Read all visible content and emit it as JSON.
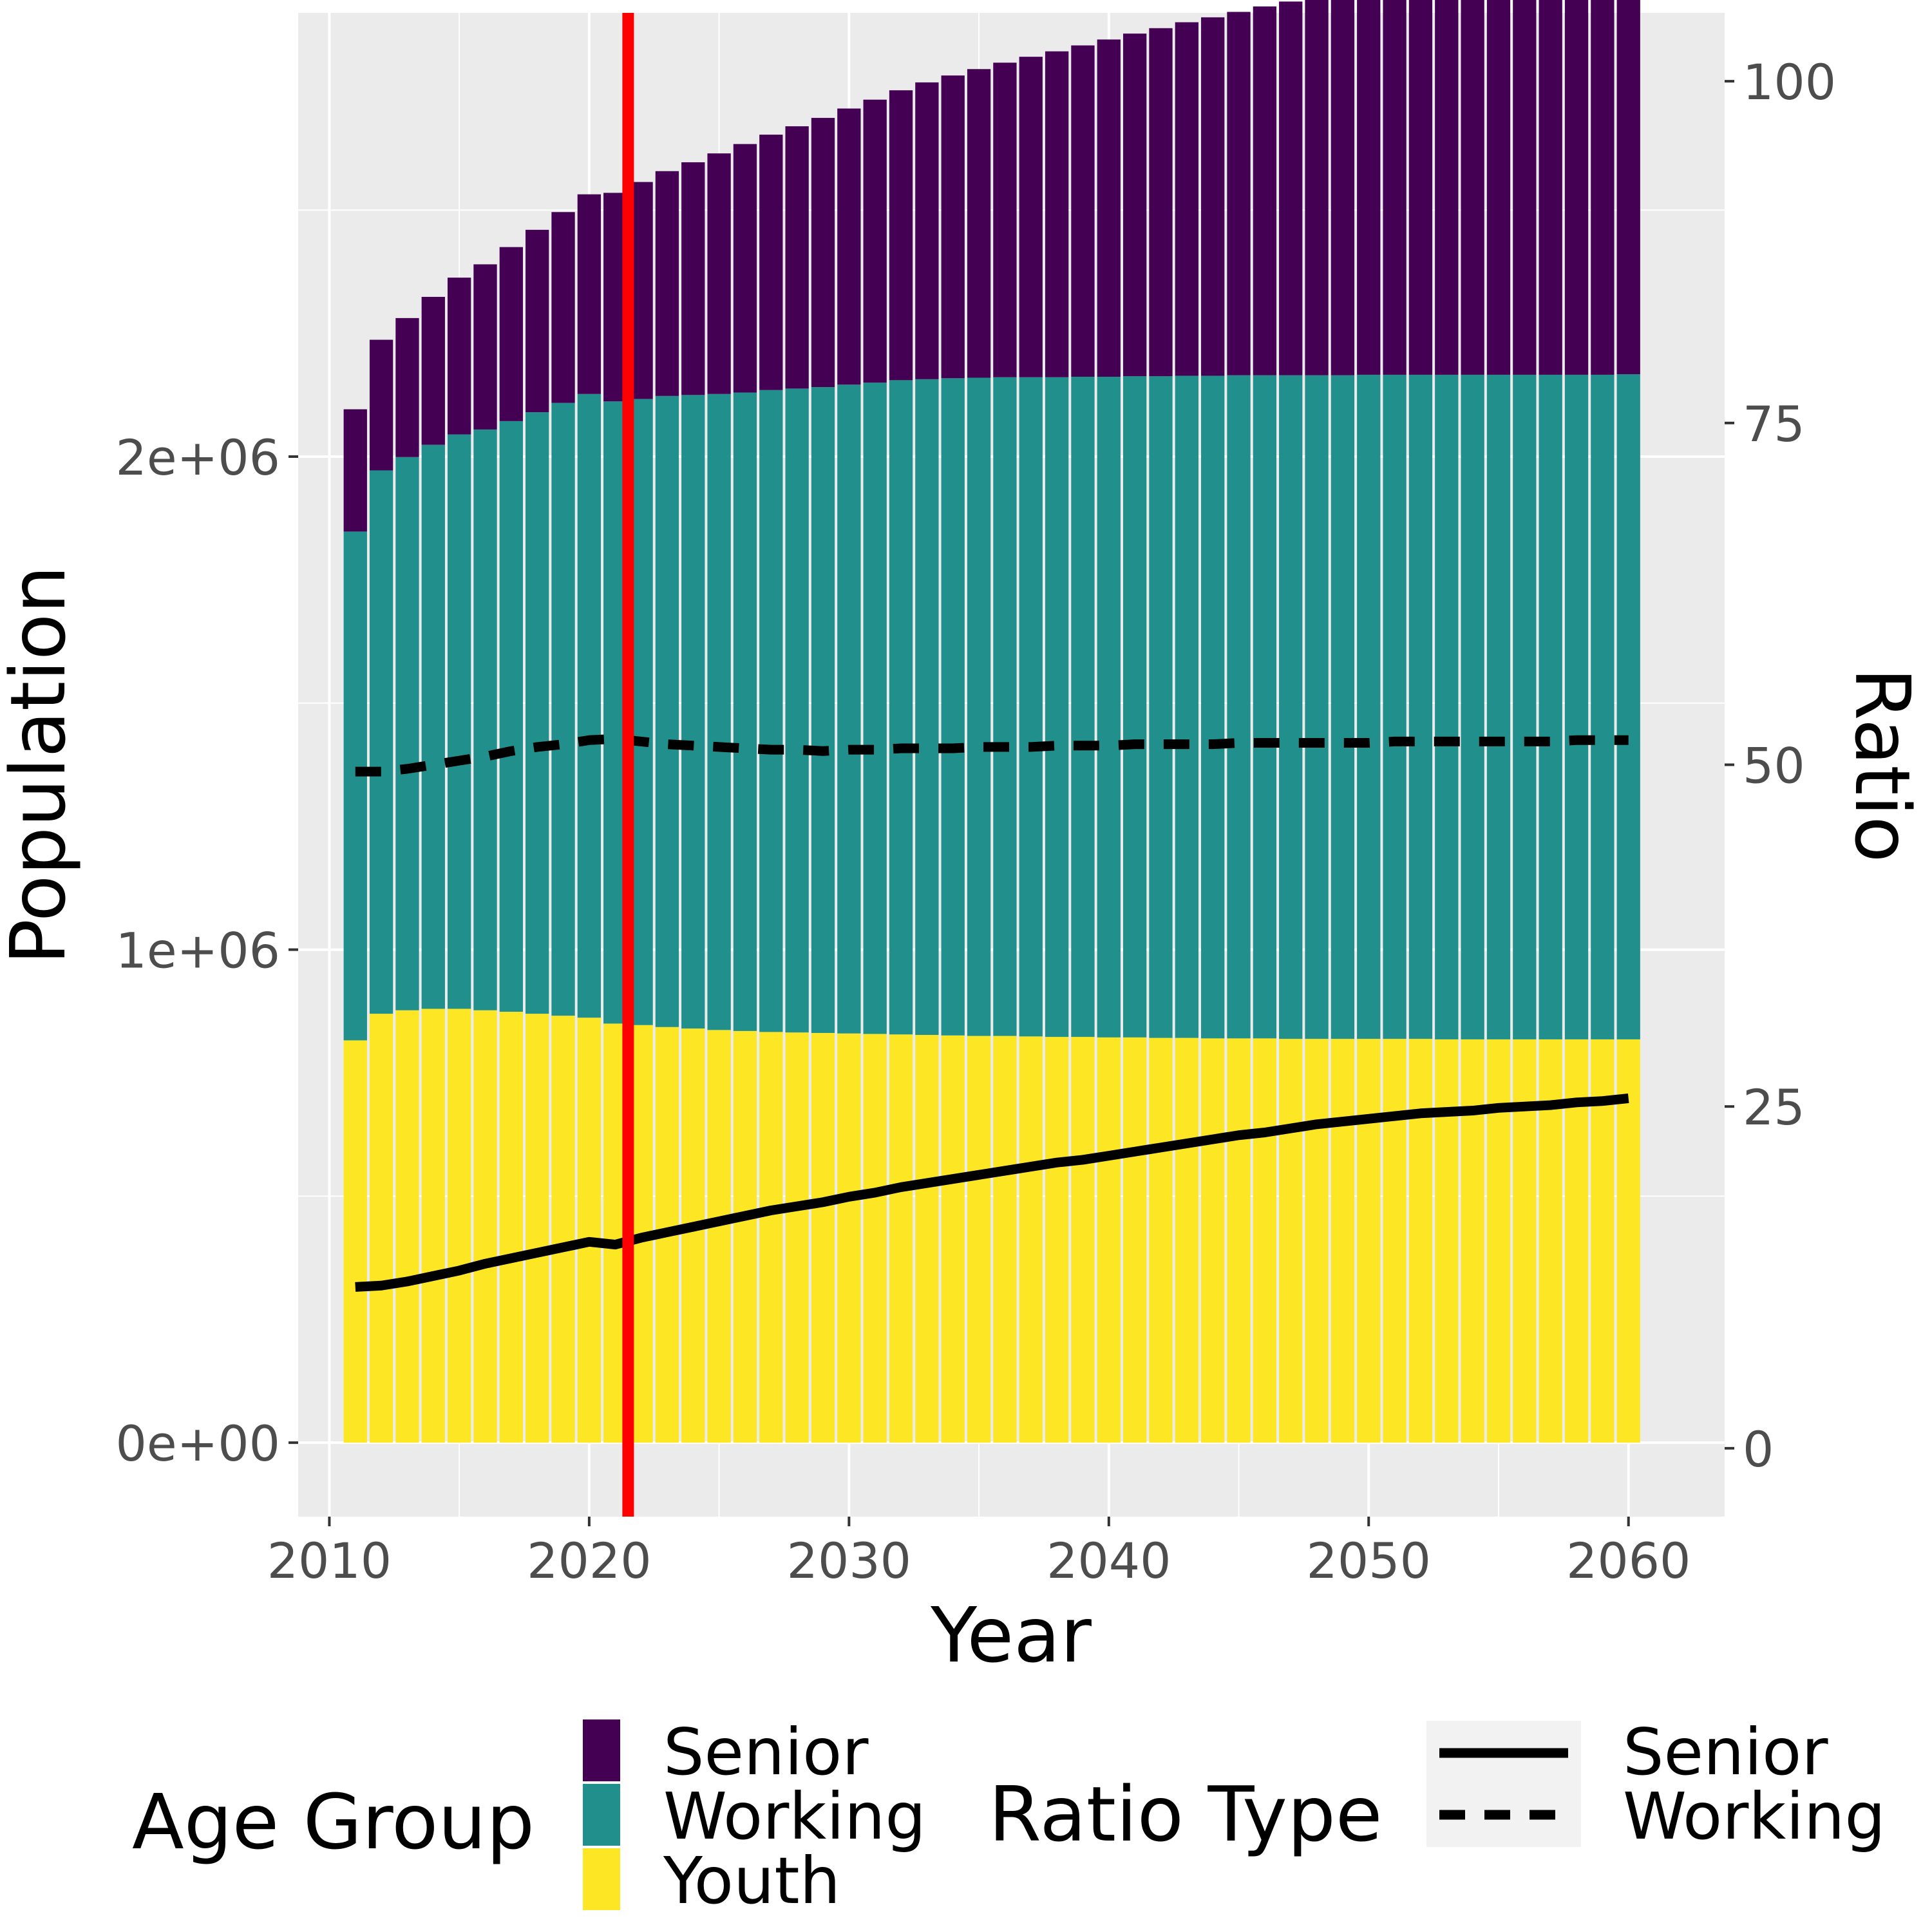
{
  "chart_data": {
    "type": "bar",
    "stacked": true,
    "x": [
      2011,
      2012,
      2013,
      2014,
      2015,
      2016,
      2017,
      2018,
      2019,
      2020,
      2021,
      2022,
      2023,
      2024,
      2025,
      2026,
      2027,
      2028,
      2029,
      2030,
      2031,
      2032,
      2033,
      2034,
      2035,
      2036,
      2037,
      2038,
      2039,
      2040,
      2041,
      2042,
      2043,
      2044,
      2045,
      2046,
      2047,
      2048,
      2049,
      2050,
      2051,
      2052,
      2053,
      2054,
      2055,
      2056,
      2057,
      2058,
      2059,
      2060
    ],
    "series": [
      {
        "name": "Youth",
        "color": "#FDE725",
        "values": [
          816000,
          870000,
          877000,
          880000,
          880000,
          877000,
          874000,
          870000,
          866000,
          862000,
          850000,
          847000,
          843000,
          840000,
          837000,
          835000,
          833000,
          832000,
          831000,
          830000,
          829000,
          828000,
          827000,
          826000,
          825000,
          825000,
          824000,
          823000,
          823000,
          822000,
          822000,
          821000,
          821000,
          820000,
          820000,
          820000,
          819000,
          819000,
          819000,
          819000,
          819000,
          819000,
          818000,
          818000,
          818000,
          818000,
          818000,
          818000,
          818000,
          818000
        ]
      },
      {
        "name": "Working",
        "color": "#21908C",
        "values": [
          1032000,
          1102000,
          1122000,
          1144000,
          1165000,
          1178000,
          1198000,
          1220000,
          1243000,
          1265000,
          1262000,
          1270000,
          1280000,
          1285000,
          1290000,
          1295000,
          1302000,
          1306000,
          1310000,
          1316000,
          1321000,
          1327000,
          1330000,
          1333000,
          1335000,
          1336000,
          1337000,
          1338000,
          1339000,
          1340000,
          1341000,
          1342000,
          1343000,
          1344000,
          1345000,
          1345000,
          1346000,
          1346000,
          1346000,
          1347000,
          1347000,
          1347000,
          1348000,
          1348000,
          1348000,
          1348000,
          1348000,
          1348000,
          1348000,
          1349000
        ]
      },
      {
        "name": "Senior",
        "color": "#440154",
        "values": [
          248000,
          265000,
          282000,
          300000,
          318000,
          335000,
          353000,
          370000,
          387000,
          405000,
          423000,
          440000,
          456000,
          472000,
          488000,
          504000,
          518000,
          532000,
          546000,
          560000,
          574000,
          588000,
          602000,
          614000,
          626000,
          638000,
          650000,
          661000,
          672000,
          684000,
          695000,
          706000,
          717000,
          727000,
          737000,
          748000,
          758000,
          767000,
          777000,
          786000,
          791000,
          795000,
          799000,
          803000,
          807000,
          811000,
          815000,
          819000,
          823000,
          827000
        ]
      }
    ],
    "lines": [
      {
        "name": "Senior",
        "dash": "solid",
        "axis": "right",
        "values": [
          11.8,
          11.9,
          12.2,
          12.6,
          13.0,
          13.5,
          13.9,
          14.3,
          14.7,
          15.1,
          14.9,
          15.4,
          15.8,
          16.2,
          16.6,
          17.0,
          17.4,
          17.7,
          18.0,
          18.4,
          18.7,
          19.1,
          19.4,
          19.7,
          20.0,
          20.3,
          20.6,
          20.9,
          21.1,
          21.4,
          21.7,
          22.0,
          22.3,
          22.6,
          22.9,
          23.1,
          23.4,
          23.7,
          23.9,
          24.1,
          24.3,
          24.5,
          24.6,
          24.7,
          24.9,
          25.0,
          25.1,
          25.3,
          25.4,
          25.6
        ]
      },
      {
        "name": "Working",
        "dash": "dashed",
        "axis": "right",
        "values": [
          49.5,
          49.5,
          49.7,
          50.0,
          50.3,
          50.6,
          51.0,
          51.3,
          51.5,
          51.8,
          51.9,
          51.7,
          51.5,
          51.4,
          51.3,
          51.2,
          51.1,
          51.1,
          51.0,
          51.1,
          51.1,
          51.2,
          51.2,
          51.2,
          51.3,
          51.3,
          51.3,
          51.4,
          51.4,
          51.4,
          51.5,
          51.5,
          51.5,
          51.5,
          51.6,
          51.6,
          51.6,
          51.6,
          51.6,
          51.6,
          51.7,
          51.7,
          51.7,
          51.7,
          51.7,
          51.7,
          51.7,
          51.8,
          51.8,
          51.8
        ]
      }
    ],
    "vline": {
      "x": 2021.5,
      "color": "#FF0000"
    },
    "xlabel": "Year",
    "ylabel": "Population",
    "y2label": "Ratio",
    "xlim": [
      2008.8,
      2063.7
    ],
    "ylim": [
      -150000,
      2900000
    ],
    "y2lim": [
      -5,
      105
    ],
    "x_ticks": [
      2010,
      2020,
      2030,
      2040,
      2050,
      2060
    ],
    "x_tick_labels": [
      "2010",
      "2020",
      "2030",
      "2040",
      "2050",
      "2060"
    ],
    "y_ticks": [
      0,
      1000000,
      2000000
    ],
    "y_tick_labels": [
      "0e+00",
      "1e+06",
      "2e+06"
    ],
    "y2_ticks": [
      0,
      25,
      50,
      75,
      100
    ],
    "y2_tick_labels": [
      "0",
      "25",
      "50",
      "75",
      "100"
    ],
    "grid": true,
    "panel_background": "#EBEBEB",
    "legend_position": "bottom",
    "legends": [
      {
        "title": "Age Group",
        "keys": [
          {
            "label": "Senior",
            "color": "#440154"
          },
          {
            "label": "Working",
            "color": "#21908C"
          },
          {
            "label": "Youth",
            "color": "#FDE725"
          }
        ]
      },
      {
        "title": "Ratio Type",
        "keys": [
          {
            "label": "Senior",
            "dash": "solid"
          },
          {
            "label": "Working",
            "dash": "dashed"
          }
        ]
      }
    ]
  }
}
